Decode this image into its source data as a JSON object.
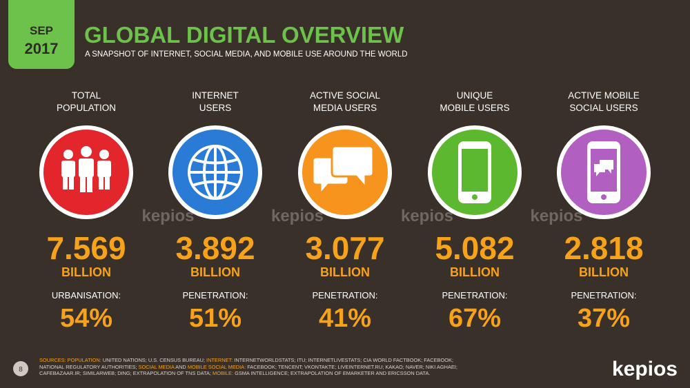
{
  "header": {
    "date_badge": [
      "SEP",
      "2017"
    ],
    "title": "GLOBAL DIGITAL OVERVIEW",
    "subtitle": "A SNAPSHOT OF INTERNET, SOCIAL MEDIA, AND MOBILE USE AROUND THE WORLD"
  },
  "columns": [
    {
      "label": [
        "TOTAL",
        "POPULATION"
      ],
      "color": "#e3262b",
      "value": "7.569",
      "unit": "BILLION",
      "metric_label": "URBANISATION:",
      "metric_value": "54%"
    },
    {
      "label": [
        "INTERNET",
        "USERS"
      ],
      "color": "#2a7bd5",
      "value": "3.892",
      "unit": "BILLION",
      "metric_label": "PENETRATION:",
      "metric_value": "51%"
    },
    {
      "label": [
        "ACTIVE SOCIAL",
        "MEDIA USERS"
      ],
      "color": "#f7941d",
      "value": "3.077",
      "unit": "BILLION",
      "metric_label": "PENETRATION:",
      "metric_value": "41%"
    },
    {
      "label": [
        "UNIQUE",
        "MOBILE USERS"
      ],
      "color": "#5cb82e",
      "value": "5.082",
      "unit": "BILLION",
      "metric_label": "PENETRATION:",
      "metric_value": "67%"
    },
    {
      "label": [
        "ACTIVE MOBILE",
        "SOCIAL USERS"
      ],
      "color": "#b25fc2",
      "value": "2.818",
      "unit": "BILLION",
      "metric_label": "PENETRATION:",
      "metric_value": "37%"
    }
  ],
  "watermarks": [
    "kepios",
    "kepios",
    "kepios",
    "kepios"
  ],
  "footer": {
    "page": "8",
    "logo": "kepios",
    "sources": [
      {
        "text": "SOURCES: POPULATION:",
        "color": "#f7a21b"
      },
      {
        "text": " UNITED NATIONS; U.S. CENSUS BUREAU; ",
        "color": "#d8d4cf"
      },
      {
        "text": "INTERNET:",
        "color": "#f7a21b"
      },
      {
        "text": " INTERNETWORLDSTATS; ITU; INTERNETLIVESTATS; CIA WORLD FACTBOOK; FACEBOOK; NATIONAL REGULATORY AUTHORITIES; ",
        "color": "#d8d4cf"
      },
      {
        "text": "SOCIAL MEDIA",
        "color": "#f7a21b"
      },
      {
        "text": " AND ",
        "color": "#d8d4cf"
      },
      {
        "text": "MOBILE SOCIAL MEDIA:",
        "color": "#f7a21b"
      },
      {
        "text": " FACEBOOK; TENCENT; VKONTAKTE; LIVEINTERNET.RU; KAKAO; NAVER; NIKI AGHAEI; CAFEBAZAAR.IR; SIMILARWEB; DING; EXTRAPOLATION OF TNS DATA; ",
        "color": "#d8d4cf"
      },
      {
        "text": "MOBILE:",
        "color": "#f7a21b"
      },
      {
        "text": " GSMA INTELLIGENCE; EXTRAPOLATION OF EMARKETER AND ERICSSON DATA.",
        "color": "#d8d4cf"
      }
    ]
  }
}
